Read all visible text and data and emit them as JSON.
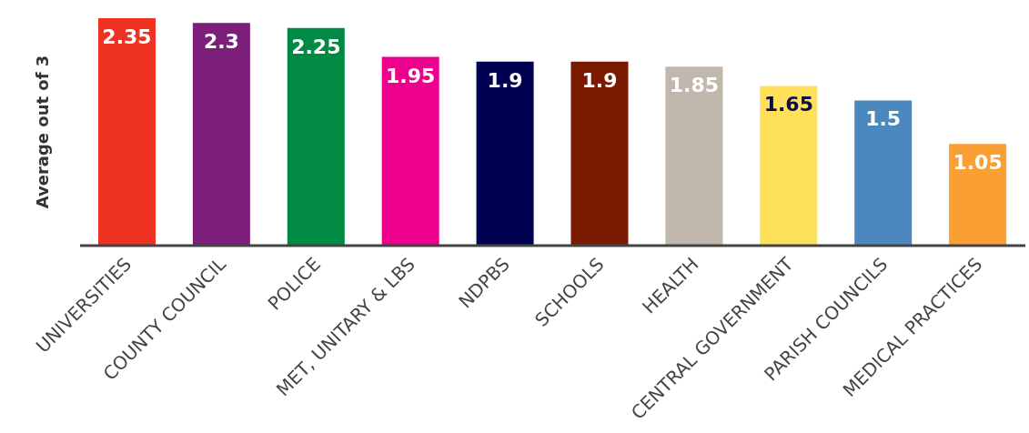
{
  "chart_data": {
    "type": "bar",
    "ylabel": "Average out of 3",
    "categories": [
      "UNIVERSITIES",
      "COUNTY COUNCIL",
      "POLICE",
      "MET, UNITARY & LBS",
      "NDPBS",
      "SCHOOLS",
      "HEALTH",
      "CENTRAL GOVERNMENT",
      "PARISH COUNCILS",
      "MEDICAL PRACTICES"
    ],
    "values": [
      2.35,
      2.3,
      2.25,
      1.95,
      1.9,
      1.9,
      1.85,
      1.65,
      1.5,
      1.05
    ],
    "colors": [
      "#ee3224",
      "#7b1f7a",
      "#008a43",
      "#ec008c",
      "#000050",
      "#7a1a00",
      "#c0b8ad",
      "#ffe05a",
      "#4b88bd",
      "#f99f34"
    ],
    "data_labels": true
  }
}
